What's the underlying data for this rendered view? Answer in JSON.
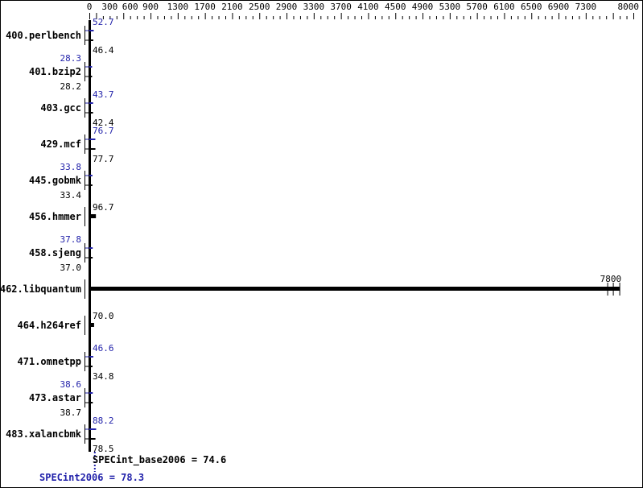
{
  "chart_data": {
    "type": "bar",
    "orientation": "horizontal",
    "xlim": [
      0,
      8000
    ],
    "x_ticks": [
      0,
      300,
      600,
      900,
      1300,
      1700,
      2100,
      2500,
      2900,
      3300,
      3700,
      4100,
      4500,
      4900,
      5300,
      5700,
      6100,
      6500,
      6900,
      7300,
      8000
    ],
    "x_axis_position": "top",
    "grid": false,
    "categories": [
      "400.perlbench",
      "401.bzip2",
      "403.gcc",
      "429.mcf",
      "445.gobmk",
      "456.hmmer",
      "458.sjeng",
      "462.libquantum",
      "464.h264ref",
      "471.omnetpp",
      "473.astar",
      "483.xalancbmk"
    ],
    "series": [
      {
        "name": "SPECint2006",
        "color": "#2222aa",
        "values": [
          52.7,
          28.3,
          43.7,
          76.7,
          33.8,
          null,
          37.8,
          null,
          null,
          46.6,
          38.6,
          88.2
        ]
      },
      {
        "name": "SPECint_base2006",
        "color": "#000000",
        "values": [
          46.4,
          28.2,
          42.4,
          77.7,
          33.4,
          96.7,
          37.0,
          7800,
          70.0,
          34.8,
          38.7,
          78.5
        ]
      }
    ],
    "value_labels": {
      "peak": [
        "52.7",
        "28.3",
        "43.7",
        "76.7",
        "33.8",
        "",
        "37.8",
        "",
        "",
        "46.6",
        "38.6",
        "88.2"
      ],
      "base": [
        "46.4",
        "28.2",
        "42.4",
        "77.7",
        "33.4",
        "96.7",
        "37.0",
        "7800",
        "70.0",
        "34.8",
        "38.7",
        "78.5"
      ]
    },
    "summary": {
      "base_label": "SPECint_base2006 = 74.6",
      "base_value": 74.6,
      "peak_label": "SPECint2006 = 78.3",
      "peak_value": 78.3
    }
  }
}
